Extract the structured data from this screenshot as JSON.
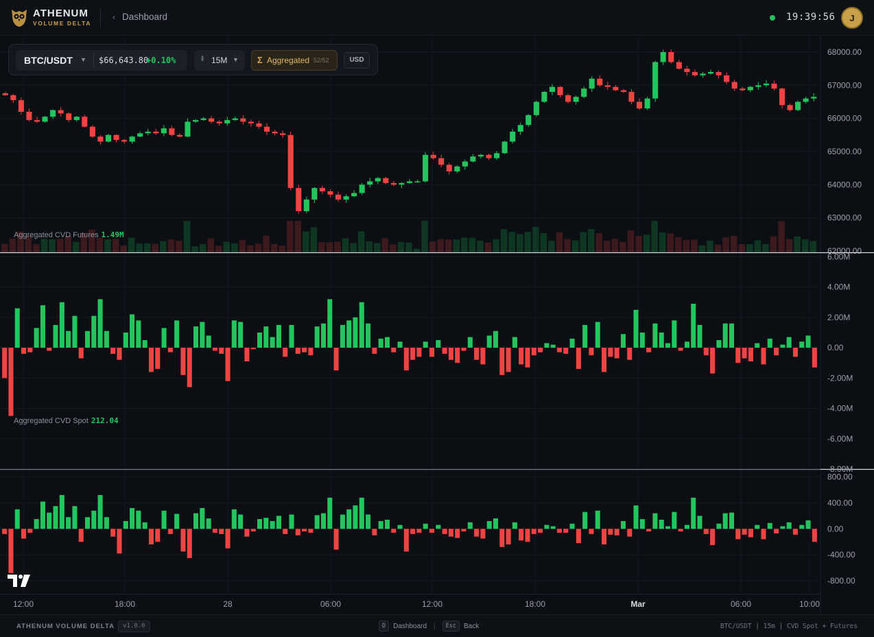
{
  "header": {
    "brand_title": "ATHENUM",
    "brand_subtitle": "VOLUME DELTA",
    "back_label": "Dashboard",
    "clock": "19:39:56",
    "avatar_initial": "J",
    "status_color": "#22c55e",
    "accent_color": "#c9a04a"
  },
  "toolbar": {
    "symbol": "BTC/USDT",
    "price": "$66,643.80",
    "change": "+0.10%",
    "timeframe": "15M",
    "aggregated_label": "Aggregated",
    "aggregated_count": "52/52",
    "currency": "USD"
  },
  "chart_data": [
    {
      "type": "candlestick",
      "pane": "price",
      "ylim": [
        62000,
        68300
      ],
      "y_ticks": [
        "68000.00",
        "67000.00",
        "66000.00",
        "65000.00",
        "64000.00",
        "63000.00",
        "62000.00"
      ],
      "close_path": [
        66700,
        66550,
        66200,
        65950,
        65900,
        66050,
        66250,
        66150,
        65950,
        66050,
        65750,
        65450,
        65300,
        65500,
        65350,
        65300,
        65450,
        65550,
        65600,
        65550,
        65700,
        65500,
        65450,
        65900,
        65950,
        66000,
        65900,
        65850,
        65950,
        66000,
        65900,
        65850,
        65750,
        65600,
        65550,
        65500,
        63900,
        63200,
        63550,
        63900,
        63800,
        63700,
        63550,
        63650,
        63750,
        64000,
        64100,
        64200,
        64050,
        64000,
        64050,
        64100,
        64100,
        64900,
        64800,
        64600,
        64400,
        64550,
        64700,
        64850,
        64900,
        64800,
        64950,
        65300,
        65600,
        65800,
        66100,
        66500,
        66800,
        66950,
        66700,
        66500,
        66650,
        66900,
        67200,
        67000,
        66950,
        66850,
        66800,
        66500,
        66300,
        66600,
        67700,
        68000,
        67700,
        67500,
        67400,
        67300,
        67350,
        67400,
        67300,
        67100,
        66900,
        66850,
        66950,
        67000,
        67050,
        66900,
        66400,
        66250,
        66500,
        66600,
        66650
      ],
      "volume_color_up": "#22c55e",
      "volume_color_down": "#ef4444"
    },
    {
      "type": "bar",
      "pane": "cvd_futures",
      "title": "Aggregated CVD Futures",
      "value": "1.49M",
      "ylim": [
        -8000000,
        6200000
      ],
      "y_ticks": [
        "6.00M",
        "4.00M",
        "2.00M",
        "0.00",
        "-2.00M",
        "-4.00M",
        "-6.00M",
        "-8.00M"
      ],
      "values": [
        -2000000,
        -4500000,
        2600000,
        -400000,
        -300000,
        1300000,
        2800000,
        -200000,
        1500000,
        3000000,
        1100000,
        2100000,
        -700000,
        1100000,
        2100000,
        3200000,
        1100000,
        -400000,
        -800000,
        1000000,
        2200000,
        1800000,
        500000,
        -1600000,
        -1400000,
        1300000,
        -300000,
        1800000,
        -1800000,
        -2600000,
        1400000,
        1700000,
        800000,
        -200000,
        -400000,
        -2200000,
        1800000,
        1700000,
        -900000,
        -100000,
        1000000,
        1400000,
        700000,
        1500000,
        -600000,
        1500000,
        -400000,
        -300000,
        -500000,
        1400000,
        1600000,
        3200000,
        -1500000,
        1500000,
        1800000,
        2000000,
        3000000,
        1600000,
        -400000,
        600000,
        700000,
        -300000,
        400000,
        -1500000,
        -800000,
        -600000,
        400000,
        -600000,
        500000,
        -400000,
        -800000,
        -1000000,
        -200000,
        700000,
        -800000,
        -1100000,
        800000,
        1100000,
        -1800000,
        -1600000,
        700000,
        -1100000,
        -1300000,
        -500000,
        -300000,
        300000,
        200000,
        -300000,
        -400000,
        600000,
        -1400000,
        1500000,
        -500000,
        1700000,
        -1600000,
        -600000,
        -700000,
        900000,
        -800000,
        2500000,
        1000000,
        -300000,
        1600000,
        1000000,
        300000,
        1800000,
        -200000,
        400000,
        2900000,
        1500000,
        -500000,
        -1700000,
        500000,
        1600000,
        1600000,
        -1000000,
        -700000,
        -900000,
        300000,
        -1100000,
        600000,
        -500000,
        200000,
        700000,
        -600000,
        400000,
        800000,
        -1300000
      ],
      "values_note": ""
    },
    {
      "type": "bar",
      "pane": "cvd_spot",
      "title": "Aggregated CVD Spot",
      "value": "212.04",
      "ylim": [
        -1000,
        900
      ],
      "y_ticks": [
        "800.00",
        "400.00",
        "0.00",
        "-400.00",
        "-800.00"
      ],
      "values": [
        -80,
        -680,
        300,
        -150,
        -60,
        150,
        420,
        250,
        350,
        520,
        180,
        350,
        -200,
        180,
        280,
        520,
        180,
        -120,
        -380,
        120,
        320,
        280,
        100,
        -240,
        -200,
        280,
        -80,
        230,
        -350,
        -450,
        240,
        320,
        160,
        -60,
        -80,
        -300,
        300,
        220,
        -120,
        -40,
        150,
        170,
        120,
        200,
        -80,
        220,
        -100,
        -40,
        -60,
        210,
        240,
        480,
        -320,
        220,
        300,
        360,
        480,
        220,
        -100,
        120,
        140,
        -60,
        60,
        -350,
        -80,
        -60,
        80,
        -60,
        60,
        -80,
        -120,
        -140,
        -40,
        100,
        -120,
        -150,
        120,
        160,
        -280,
        -240,
        100,
        -180,
        -200,
        -80,
        -60,
        60,
        40,
        -60,
        -60,
        80,
        -220,
        260,
        -80,
        280,
        -240,
        -90,
        -100,
        120,
        -120,
        360,
        150,
        -40,
        240,
        140,
        40,
        260,
        -40,
        60,
        480,
        200,
        -80,
        -250,
        80,
        240,
        250,
        -160,
        -90,
        -130,
        60,
        -160,
        90,
        -70,
        40,
        100,
        -90,
        60,
        130,
        -200
      ]
    }
  ],
  "time_axis": [
    "12:00",
    "18:00",
    "28",
    "06:00",
    "12:00",
    "18:00",
    "Mar",
    "06:00",
    "10:00"
  ],
  "footer": {
    "brand": "ATHENUM VOLUME DELTA",
    "version": "v1.0.0",
    "key_dashboard": "D",
    "dashboard_label": "Dashboard",
    "key_back": "Esc",
    "back_label": "Back",
    "context": "BTC/USDT | 15m | CVD Spot + Futures"
  }
}
